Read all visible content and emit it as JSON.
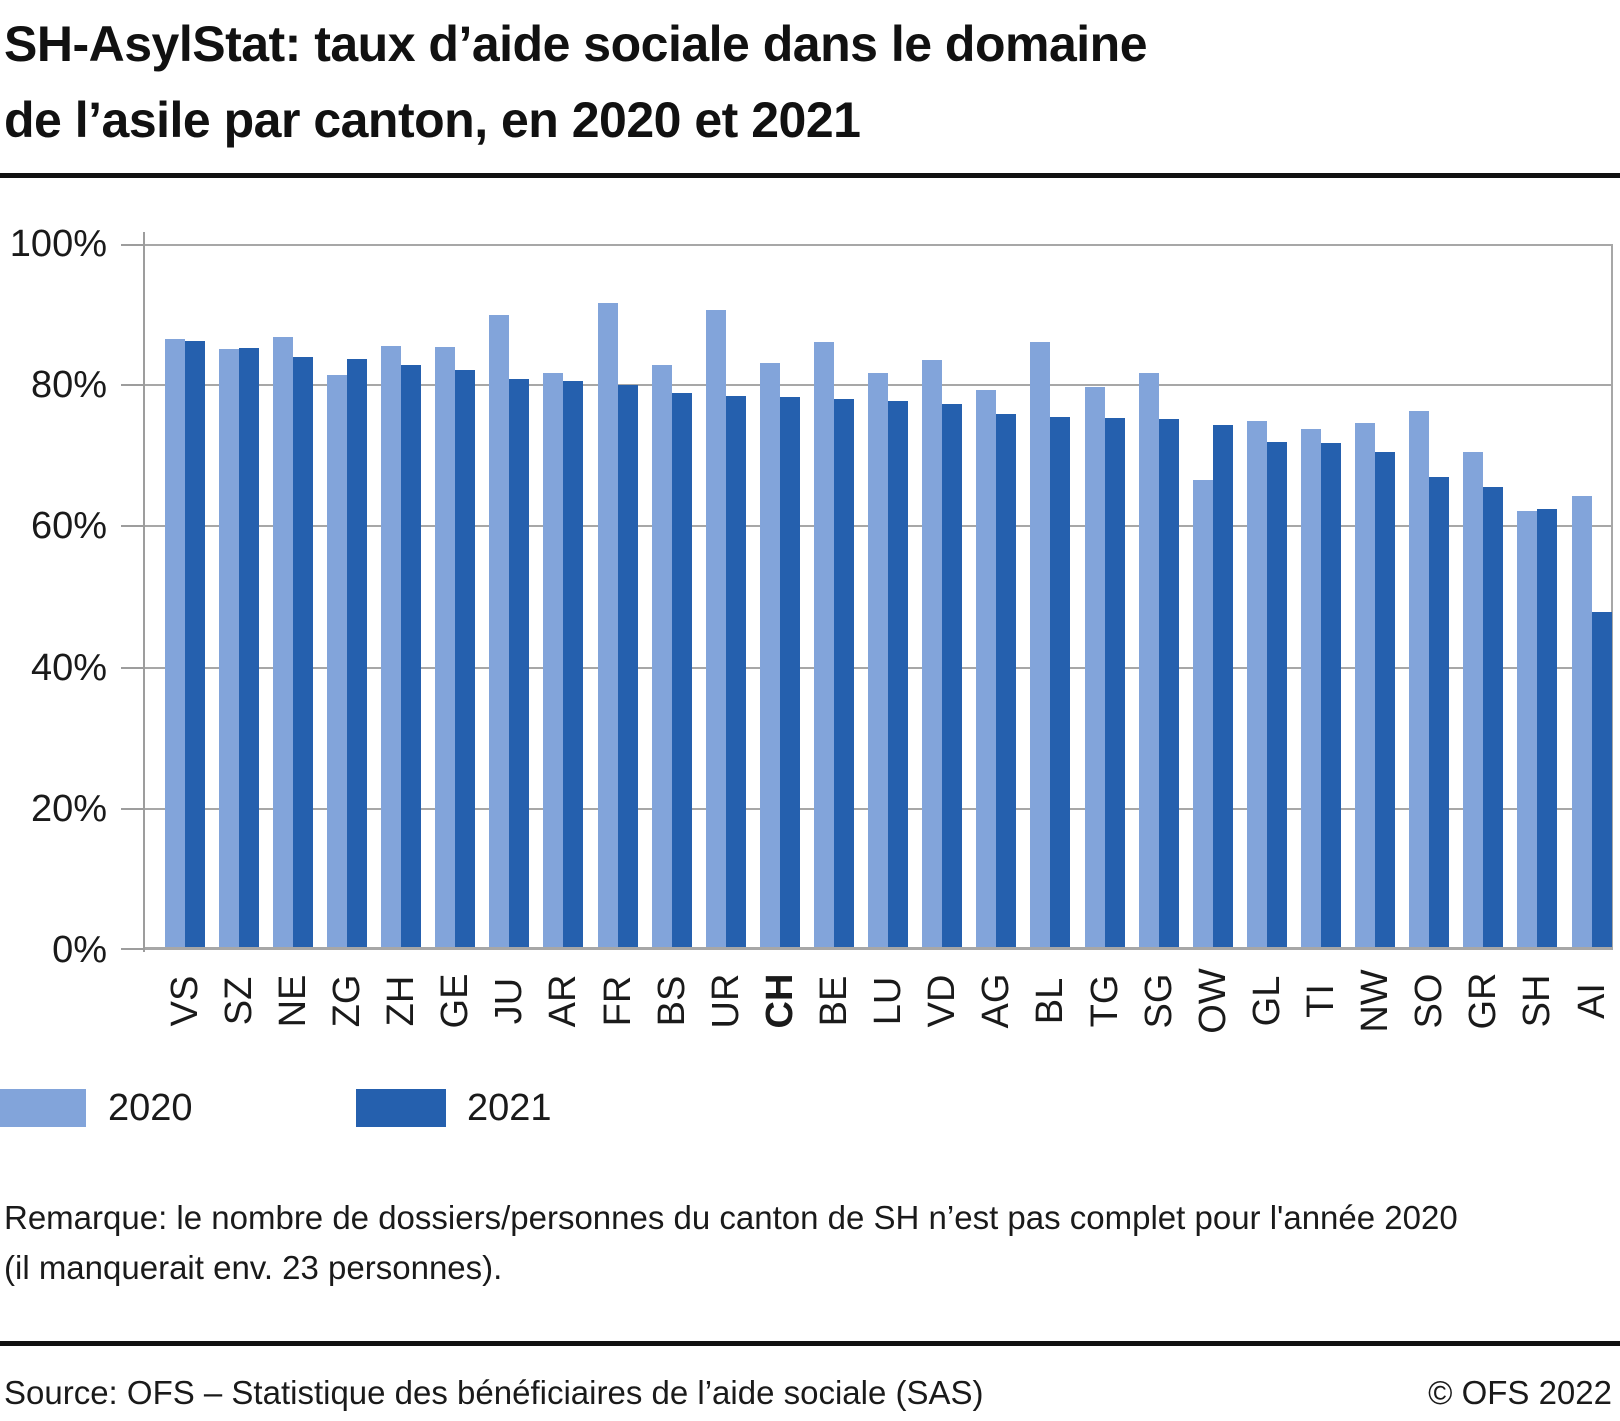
{
  "title": {
    "line1": "SH-AsylStat: taux d’aide sociale dans le domaine",
    "line2": "de l’asile par canton, en 2020 et 2021"
  },
  "chart_data": {
    "type": "bar",
    "title": "SH-AsylStat: taux d’aide sociale dans le domaine de l’asile par canton, en 2020 et 2021",
    "categories": [
      "VS",
      "SZ",
      "NE",
      "ZG",
      "ZH",
      "GE",
      "JU",
      "AR",
      "FR",
      "BS",
      "UR",
      "CH",
      "BE",
      "LU",
      "VD",
      "AG",
      "BL",
      "TG",
      "SG",
      "OW",
      "GL",
      "TI",
      "NW",
      "SO",
      "GR",
      "SH",
      "AI"
    ],
    "bold_category": "CH",
    "series": [
      {
        "name": "2020",
        "color": "#82a4da",
        "values": [
          86.6,
          85.1,
          86.9,
          81.4,
          85.5,
          85.4,
          89.9,
          81.8,
          91.6,
          82.8,
          90.7,
          83.1,
          86.1,
          81.7,
          83.6,
          79.3,
          86.1,
          79.8,
          81.7,
          66.6,
          75.0,
          73.8,
          74.7,
          76.3,
          70.5,
          62.2,
          64.3
        ]
      },
      {
        "name": "2021",
        "color": "#2560ae",
        "values": [
          86.3,
          85.3,
          84.0,
          83.7,
          82.9,
          82.2,
          80.9,
          80.6,
          80.1,
          78.9,
          78.5,
          78.3,
          78.0,
          77.8,
          77.3,
          75.9,
          75.5,
          75.3,
          75.2,
          74.3,
          71.9,
          71.8,
          70.5,
          67.0,
          65.6,
          62.5,
          47.9
        ]
      }
    ],
    "yticks": [
      {
        "label": "0%",
        "value": 0
      },
      {
        "label": "20%",
        "value": 20
      },
      {
        "label": "40%",
        "value": 40
      },
      {
        "label": "60%",
        "value": 60
      },
      {
        "label": "80%",
        "value": 80
      },
      {
        "label": "100%",
        "value": 100
      }
    ],
    "ylim": [
      0,
      100
    ],
    "grid": true,
    "legend_position": "bottom",
    "grid_color": "#a7a7a7"
  },
  "note": {
    "line1": "Remarque: le nombre de dossiers/personnes du canton de SH n’est pas complet pour l'année 2020",
    "line2": "(il manquerait env. 23 personnes)."
  },
  "footer": {
    "source": "Source: OFS – Statistique des bénéficiaires de l’aide sociale (SAS)",
    "copyright": "© OFS 2022"
  }
}
